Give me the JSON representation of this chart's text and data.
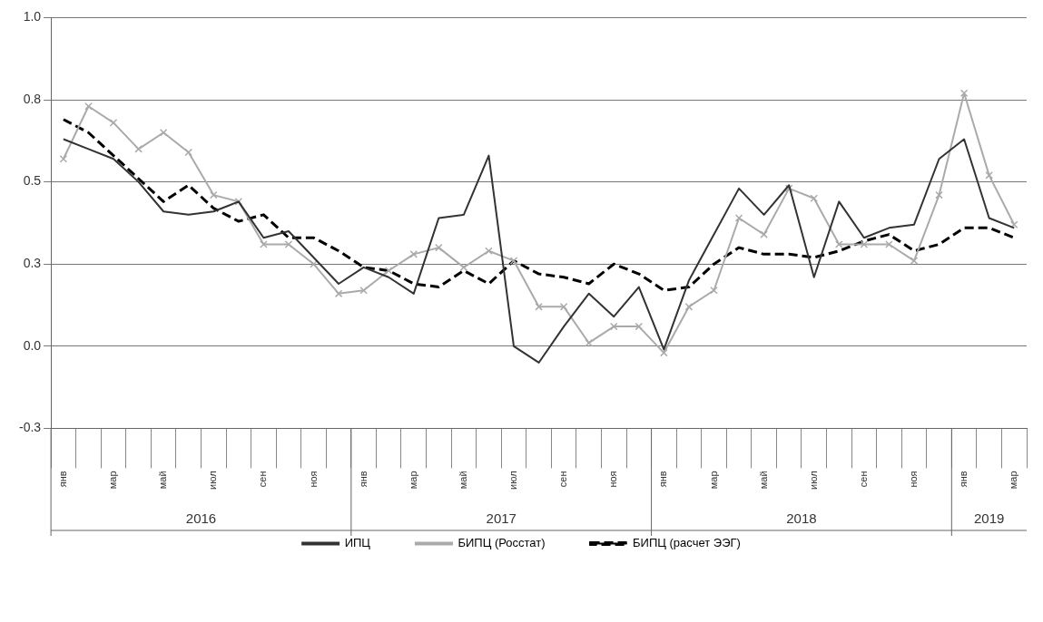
{
  "chart_data": {
    "type": "line",
    "categories": [
      "янв",
      null,
      "мар",
      null,
      "май",
      null,
      "июл",
      null,
      "сен",
      null,
      "ноя",
      null,
      "янв",
      null,
      "мар",
      null,
      "май",
      null,
      "июл",
      null,
      "сен",
      null,
      "ноя",
      null,
      "янв",
      null,
      "мар",
      null,
      "май",
      null,
      "июл",
      null,
      "сен",
      null,
      "ноя",
      null,
      "янв",
      null,
      "мар"
    ],
    "series": [
      {
        "name": "ИПЦ",
        "color": "#333333",
        "marker": "none",
        "line_style": "solid",
        "values": [
          0.63,
          0.6,
          0.57,
          0.5,
          0.41,
          0.4,
          0.41,
          0.44,
          0.33,
          0.35,
          0.27,
          0.19,
          0.24,
          0.21,
          0.16,
          0.39,
          0.4,
          0.58,
          0.0,
          -0.05,
          0.06,
          0.16,
          0.09,
          0.18,
          -0.01,
          0.2,
          0.34,
          0.48,
          0.4,
          0.49,
          0.21,
          0.44,
          0.33,
          0.36,
          0.37,
          0.57,
          0.63,
          0.39,
          0.36
        ]
      },
      {
        "name": "БИПЦ (Росстат)",
        "color": "#aaaaaa",
        "marker": "cross",
        "line_style": "solid",
        "values": [
          0.57,
          0.73,
          0.68,
          0.6,
          0.65,
          0.59,
          0.46,
          0.44,
          0.31,
          0.31,
          0.25,
          0.16,
          0.17,
          0.23,
          0.28,
          0.3,
          0.24,
          0.29,
          0.26,
          0.12,
          0.12,
          0.01,
          0.06,
          0.06,
          -0.02,
          0.12,
          0.17,
          0.39,
          0.34,
          0.48,
          0.45,
          0.31,
          0.31,
          0.31,
          0.26,
          0.46,
          0.77,
          0.52,
          0.37
        ]
      },
      {
        "name": "БИПЦ (расчет ЭЭГ)",
        "color": "#000000",
        "marker": "none",
        "line_style": "dashed",
        "values": [
          0.69,
          0.65,
          0.58,
          0.51,
          0.44,
          0.49,
          0.42,
          0.38,
          0.4,
          0.33,
          0.33,
          0.29,
          0.24,
          0.23,
          0.19,
          0.18,
          0.23,
          0.19,
          0.26,
          0.22,
          0.21,
          0.19,
          0.25,
          0.22,
          0.17,
          0.18,
          0.25,
          0.3,
          0.28,
          0.28,
          0.27,
          0.29,
          0.32,
          0.34,
          0.29,
          0.31,
          0.36,
          0.36,
          0.33
        ]
      }
    ],
    "ylim": [
      -0.25,
      1
    ],
    "yticks": [
      {
        "value": 1,
        "label": "1.0"
      },
      {
        "value": 0.75,
        "label": "0.8"
      },
      {
        "value": 0.5,
        "label": "0.5"
      },
      {
        "value": 0.25,
        "label": "0.3"
      },
      {
        "value": 0,
        "label": "0.0"
      },
      {
        "value": -0.25,
        "label": "-0.3"
      }
    ],
    "grid": "y",
    "legend": "bottom",
    "annotations": [
      "2016",
      "2017",
      "2018",
      "2019"
    ]
  }
}
